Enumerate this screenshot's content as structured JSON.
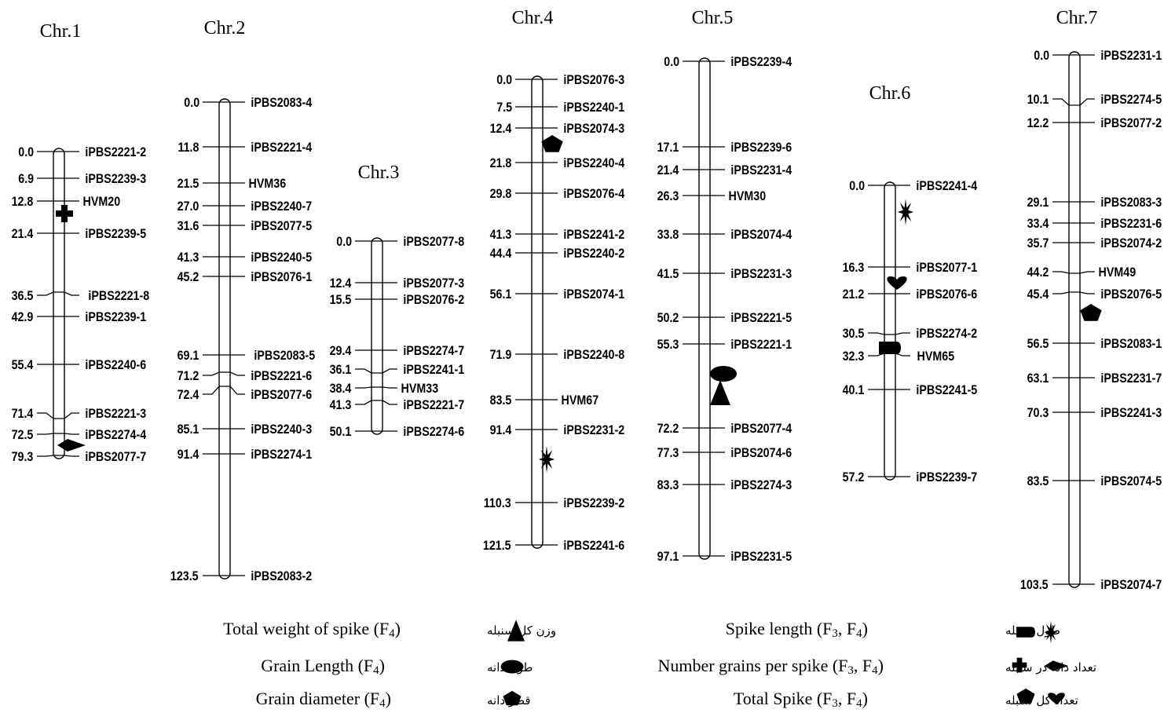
{
  "chromosomes": [
    {
      "name": "Chr.1",
      "markers": [
        {
          "pos": "0.0",
          "name": "iPBS2221-2"
        },
        {
          "pos": "6.9",
          "name": "iPBS2239-3"
        },
        {
          "pos": "12.8",
          "name": "HVM20"
        },
        {
          "pos": "21.4",
          "name": "iPBS2239-5"
        },
        {
          "pos": "36.5",
          "name": "iPBS2221-8"
        },
        {
          "pos": "42.9",
          "name": "iPBS2239-1"
        },
        {
          "pos": "55.4",
          "name": "iPBS2240-6"
        },
        {
          "pos": "71.4",
          "name": "iPBS2221-3"
        },
        {
          "pos": "72.5",
          "name": "iPBS2274-4"
        },
        {
          "pos": "79.3",
          "name": "iPBS2077-7"
        }
      ],
      "qtls": [
        {
          "shape": "cross"
        },
        {
          "shape": "diamond"
        }
      ]
    },
    {
      "name": "Chr.2",
      "markers": [
        {
          "pos": "0.0",
          "name": "iPBS2083-4"
        },
        {
          "pos": "11.8",
          "name": "iPBS2221-4"
        },
        {
          "pos": "21.5",
          "name": "HVM36"
        },
        {
          "pos": "27.0",
          "name": "iPBS2240-7"
        },
        {
          "pos": "31.6",
          "name": "iPBS2077-5"
        },
        {
          "pos": "41.3",
          "name": "iPBS2240-5"
        },
        {
          "pos": "45.2",
          "name": "iPBS2076-1"
        },
        {
          "pos": "69.1",
          "name": "iPBS2083-5"
        },
        {
          "pos": "71.2",
          "name": "iPBS2221-6"
        },
        {
          "pos": "72.4",
          "name": "iPBS2077-6"
        },
        {
          "pos": "85.1",
          "name": "iPBS2240-3"
        },
        {
          "pos": "91.4",
          "name": "iPBS2274-1"
        },
        {
          "pos": "123.5",
          "name": "iPBS2083-2"
        }
      ],
      "qtls": []
    },
    {
      "name": "Chr.3",
      "markers": [
        {
          "pos": "0.0",
          "name": "iPBS2077-8"
        },
        {
          "pos": "12.4",
          "name": "iPBS2077-3"
        },
        {
          "pos": "15.5",
          "name": "iPBS2076-2"
        },
        {
          "pos": "29.4",
          "name": "iPBS2274-7"
        },
        {
          "pos": "36.1",
          "name": "iPBS2241-1"
        },
        {
          "pos": "38.4",
          "name": "HVM33"
        },
        {
          "pos": "41.3",
          "name": "iPBS2221-7"
        },
        {
          "pos": "50.1",
          "name": "iPBS2274-6"
        }
      ],
      "qtls": []
    },
    {
      "name": "Chr.4",
      "markers": [
        {
          "pos": "0.0",
          "name": "iPBS2076-3"
        },
        {
          "pos": "7.5",
          "name": "iPBS2240-1"
        },
        {
          "pos": "12.4",
          "name": "iPBS2074-3"
        },
        {
          "pos": "21.8",
          "name": "iPBS2240-4"
        },
        {
          "pos": "29.8",
          "name": "iPBS2076-4"
        },
        {
          "pos": "41.3",
          "name": "iPBS2241-2"
        },
        {
          "pos": "44.4",
          "name": "iPBS2240-2"
        },
        {
          "pos": "56.1",
          "name": "iPBS2074-1"
        },
        {
          "pos": "71.9",
          "name": "iPBS2240-8"
        },
        {
          "pos": "83.5",
          "name": "HVM67"
        },
        {
          "pos": "91.4",
          "name": "iPBS2231-2"
        },
        {
          "pos": "110.3",
          "name": "iPBS2239-2"
        },
        {
          "pos": "121.5",
          "name": "iPBS2241-6"
        }
      ],
      "qtls": [
        {
          "shape": "pentagon"
        },
        {
          "shape": "star"
        }
      ]
    },
    {
      "name": "Chr.5",
      "markers": [
        {
          "pos": "0.0",
          "name": "iPBS2239-4"
        },
        {
          "pos": "17.1",
          "name": "iPBS2239-6"
        },
        {
          "pos": "21.4",
          "name": "iPBS2231-4"
        },
        {
          "pos": "26.3",
          "name": "HVM30"
        },
        {
          "pos": "33.8",
          "name": "iPBS2074-4"
        },
        {
          "pos": "41.5",
          "name": "iPBS2231-3"
        },
        {
          "pos": "50.2",
          "name": "iPBS2221-5"
        },
        {
          "pos": "55.3",
          "name": "iPBS2221-1"
        },
        {
          "pos": "72.2",
          "name": "iPBS2077-4"
        },
        {
          "pos": "77.3",
          "name": "iPBS2074-6"
        },
        {
          "pos": "83.3",
          "name": "iPBS2274-3"
        },
        {
          "pos": "97.1",
          "name": "iPBS2231-5"
        }
      ],
      "qtls": [
        {
          "shape": "ellipse"
        },
        {
          "shape": "triangle"
        }
      ]
    },
    {
      "name": "Chr.6",
      "markers": [
        {
          "pos": "0.0",
          "name": "iPBS2241-4"
        },
        {
          "pos": "16.3",
          "name": "iPBS2077-1"
        },
        {
          "pos": "21.2",
          "name": "iPBS2076-6"
        },
        {
          "pos": "30.5",
          "name": "iPBS2274-2"
        },
        {
          "pos": "32.3",
          "name": "HVM65"
        },
        {
          "pos": "40.1",
          "name": "iPBS2241-5"
        },
        {
          "pos": "57.2",
          "name": "iPBS2239-7"
        }
      ],
      "qtls": [
        {
          "shape": "star"
        },
        {
          "shape": "heart"
        },
        {
          "shape": "rounded-rect"
        }
      ]
    },
    {
      "name": "Chr.7",
      "markers": [
        {
          "pos": "0.0",
          "name": "iPBS2231-1"
        },
        {
          "pos": "10.1",
          "name": "iPBS2274-5"
        },
        {
          "pos": "12.2",
          "name": "iPBS2077-2"
        },
        {
          "pos": "29.1",
          "name": "iPBS2083-3"
        },
        {
          "pos": "33.4",
          "name": "iPBS2231-6"
        },
        {
          "pos": "35.7",
          "name": "iPBS2074-2"
        },
        {
          "pos": "44.2",
          "name": "HVM49"
        },
        {
          "pos": "45.4",
          "name": "iPBS2076-5"
        },
        {
          "pos": "56.5",
          "name": "iPBS2083-1"
        },
        {
          "pos": "63.1",
          "name": "iPBS2231-7"
        },
        {
          "pos": "70.3",
          "name": "iPBS2241-3"
        },
        {
          "pos": "83.5",
          "name": "iPBS2074-5"
        },
        {
          "pos": "103.5",
          "name": "iPBS2074-7"
        }
      ],
      "qtls": [
        {
          "shape": "pentagon"
        }
      ]
    }
  ],
  "legend": [
    {
      "en": "Total weight of spike  (F",
      "sub": "4",
      "en2": ")",
      "fa": "وزن کل سنبله",
      "icons": [
        "triangle"
      ]
    },
    {
      "en": "Grain Length  (F",
      "sub": "4",
      "en2": ")",
      "fa": "طول دانه",
      "icons": [
        "ellipse"
      ]
    },
    {
      "en": "Grain diameter  (F",
      "sub": "4",
      "en2": ")",
      "fa": "قطر دانه",
      "icons": [
        "pentagon"
      ]
    },
    {
      "en": "Spike length  (F",
      "sub": "3",
      "en2": ", F",
      "sub2": "4",
      "en3": ")",
      "fa": "طول سنبله",
      "icons": [
        "rounded-rect",
        "star"
      ]
    },
    {
      "en": "Number grains per spike (F",
      "sub": "3",
      "en2": ", F",
      "sub2": "4",
      "en3": ")",
      "fa": "تعداد دانه در سنبله",
      "icons": [
        "cross",
        "diamond"
      ]
    },
    {
      "en": "Total Spike    (F",
      "sub": "3",
      "en2": ", F",
      "sub2": "4",
      "en3": ")",
      "fa": "تعداد کل سنبله",
      "icons": [
        "pentagon",
        "heart"
      ]
    }
  ]
}
